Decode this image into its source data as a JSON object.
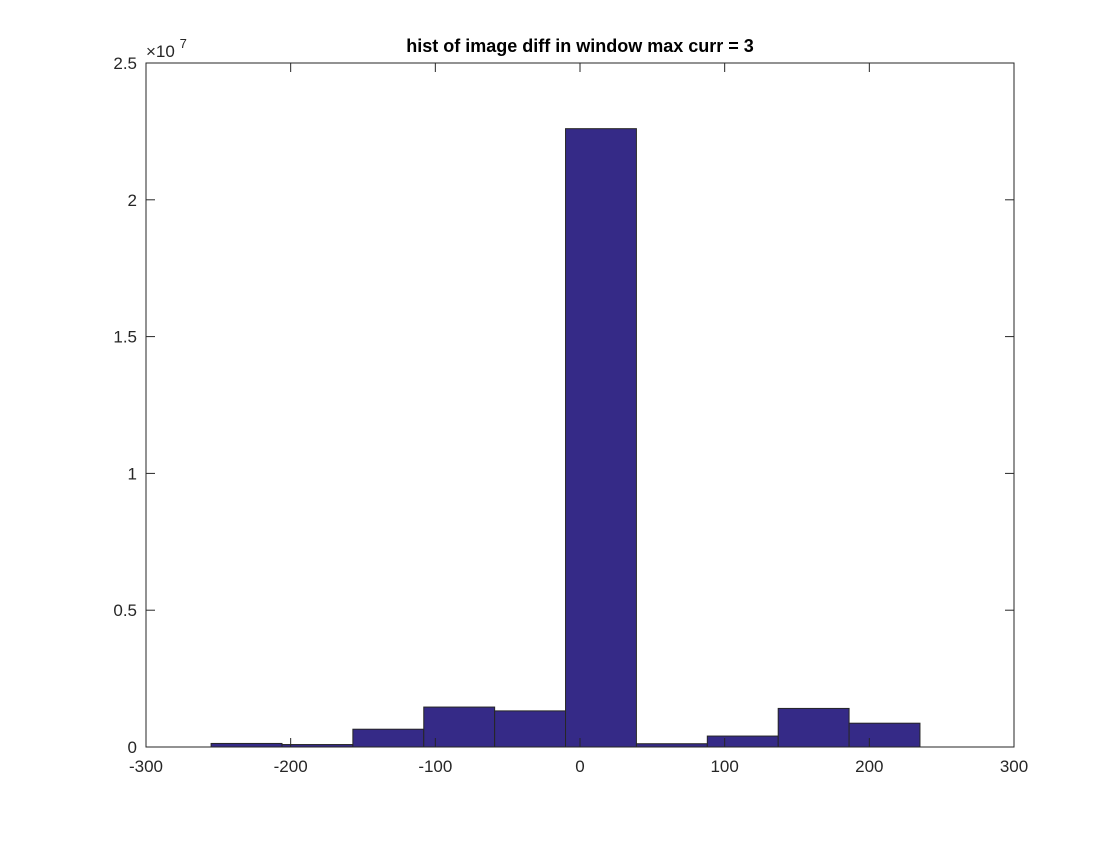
{
  "chart_data": {
    "type": "bar",
    "title": "hist of image diff in window max curr = 3",
    "xlabel": "",
    "ylabel": "",
    "xlim": [
      -300,
      300
    ],
    "ylim": [
      0,
      25000000
    ],
    "y_exponent_label": "×10",
    "y_exponent_power": "7",
    "xticks": [
      -300,
      -200,
      -100,
      0,
      100,
      200,
      300
    ],
    "xtick_labels": [
      "-300",
      "-200",
      "-100",
      "0",
      "100",
      "200",
      "300"
    ],
    "yticks": [
      0,
      5000000,
      10000000,
      15000000,
      20000000,
      25000000
    ],
    "ytick_labels": [
      "0",
      "0.5",
      "1",
      "1.5",
      "2",
      "2.5"
    ],
    "grid": false,
    "bar_color": "#352a87",
    "bar_edge_color": "#262626",
    "bins": [
      {
        "x0": -255,
        "x1": -206,
        "value": 130000
      },
      {
        "x0": -206,
        "x1": -157,
        "value": 90000
      },
      {
        "x0": -157,
        "x1": -108,
        "value": 650000
      },
      {
        "x0": -108,
        "x1": -59,
        "value": 1460000
      },
      {
        "x0": -59,
        "x1": -10,
        "value": 1320000
      },
      {
        "x0": -10,
        "x1": 39,
        "value": 22600000
      },
      {
        "x0": 39,
        "x1": 88,
        "value": 120000
      },
      {
        "x0": 88,
        "x1": 137,
        "value": 400000
      },
      {
        "x0": 137,
        "x1": 186,
        "value": 1410000
      },
      {
        "x0": 186,
        "x1": 235,
        "value": 870000
      }
    ]
  }
}
